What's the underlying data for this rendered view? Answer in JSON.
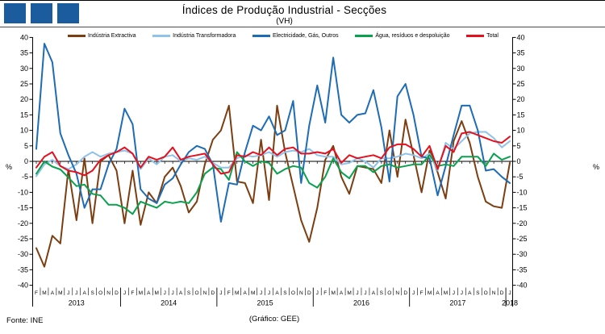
{
  "header": {
    "title": "Índices de Produção Industrial - Secções",
    "subtitle": "(VH)"
  },
  "logo": {
    "squares": 3,
    "color": "#1A5C9E"
  },
  "footer": {
    "source": "Fonte: INE",
    "credit": "(Gráfico: GEE)"
  },
  "chart_data": {
    "type": "line",
    "title": "Índices de Produção Industrial - Secções",
    "subtitle": "(VH)",
    "unit": "%",
    "ylim": [
      -40,
      40
    ],
    "ytick_step": 5,
    "legend_position": "top",
    "grid": false,
    "x_month_letters": [
      "F",
      "M",
      "A",
      "M",
      "J",
      "J",
      "A",
      "S",
      "O",
      "N",
      "D",
      "J",
      "F",
      "M",
      "A",
      "M",
      "J",
      "J",
      "A",
      "S",
      "O",
      "N",
      "D",
      "J",
      "F",
      "M",
      "A",
      "M",
      "J",
      "J",
      "A",
      "S",
      "O",
      "N",
      "D",
      "J",
      "F",
      "M",
      "A",
      "M",
      "J",
      "J",
      "A",
      "S",
      "O",
      "N",
      "D",
      "J",
      "F",
      "M",
      "A",
      "M",
      "J",
      "J",
      "A",
      "S",
      "O",
      "N",
      "D",
      "J"
    ],
    "years": [
      {
        "label": "2013",
        "start": 0,
        "count": 11
      },
      {
        "label": "2014",
        "start": 11,
        "count": 12
      },
      {
        "label": "2015",
        "start": 23,
        "count": 12
      },
      {
        "label": "2016",
        "start": 35,
        "count": 12
      },
      {
        "label": "2017",
        "start": 47,
        "count": 12
      },
      {
        "label": "2018",
        "start": 59,
        "count": 1
      }
    ],
    "series": [
      {
        "name": "Indústria Extractiva",
        "color": "#7C3E11",
        "values": [
          -28,
          -34,
          -24,
          -26.5,
          -2.5,
          -19,
          1,
          -20,
          0,
          2,
          -3,
          -20,
          -3,
          -20.5,
          -10,
          -13.5,
          -5,
          -2,
          -8,
          -16.5,
          -13,
          -1,
          7,
          10,
          18,
          -6.5,
          -7,
          -13.5,
          7,
          -12.5,
          18,
          3,
          -8,
          -19,
          -26,
          -15,
          0.5,
          5,
          -5,
          -10.5,
          -1.5,
          -2,
          -2.5,
          -7,
          10,
          -5,
          13.5,
          2,
          -10,
          3.5,
          -3.5,
          -12,
          6.5,
          13,
          6,
          -5,
          -13,
          -14.5,
          -15,
          -0.5
        ]
      },
      {
        "name": "Indústria Transformadora",
        "color": "#8FC3E9",
        "values": [
          -4.8,
          -1,
          0.5,
          -1.5,
          -2.5,
          -1,
          1.5,
          3,
          1.5,
          2.5,
          3,
          3.5,
          2.5,
          -2.5,
          1,
          -1,
          1.5,
          2,
          0,
          1,
          0.5,
          1.5,
          -0.5,
          -2,
          -2,
          1,
          2,
          1.5,
          2,
          3,
          1.5,
          3,
          3.5,
          3,
          4,
          2,
          1.5,
          1.5,
          -1,
          -0.5,
          1,
          0,
          -2,
          1,
          1,
          1.5,
          2.5,
          2,
          1,
          2.5,
          -3,
          6,
          4,
          6.5,
          9,
          9.5,
          9.5,
          7.5,
          4.5,
          6.5
        ]
      },
      {
        "name": "Electricidade, Gás, Outros",
        "color": "#1D6CB5",
        "values": [
          4,
          38,
          32,
          9,
          2,
          -4,
          -15,
          -9,
          -9,
          -1,
          4,
          17,
          12,
          -9,
          -12,
          -13.5,
          -7.5,
          -5.5,
          -1,
          3,
          5,
          4,
          -1,
          -19.5,
          -7,
          -7.5,
          3,
          11.5,
          10,
          14.5,
          8.5,
          10,
          19.5,
          -7,
          11.5,
          24.5,
          12.5,
          33.5,
          15,
          12.5,
          15,
          15.5,
          23,
          11,
          -6.5,
          21,
          25,
          15,
          1.5,
          1,
          -11,
          -1.5,
          8.5,
          18,
          18,
          10,
          -3,
          -2.5,
          -5,
          -7
        ]
      },
      {
        "name": "Água, resíduos e despoluição",
        "color": "#0AA14E",
        "values": [
          -4,
          0,
          -1.7,
          -2.6,
          -5.2,
          -8,
          -7.5,
          -10.5,
          -11,
          -14,
          -14,
          -15,
          -17,
          -13,
          -14,
          -15,
          -13,
          -13.5,
          -13,
          -13.5,
          -10,
          -4,
          -2,
          -2.5,
          -6,
          3,
          0,
          -1.5,
          0,
          -0.5,
          -4,
          -2.5,
          -1.5,
          -2,
          -7,
          -8.5,
          -5,
          1,
          -3.5,
          -5.5,
          -1.5,
          -1.5,
          -3.5,
          -1.5,
          -1,
          -2,
          -1.5,
          -1,
          -1,
          2,
          -1.5,
          -1,
          -1.5,
          1.5,
          1.5,
          1.5,
          -1.5,
          2.5,
          0.5,
          1.5
        ]
      },
      {
        "name": "Total",
        "color": "#E4101E",
        "values": [
          -2,
          1.5,
          3,
          -1.5,
          -3,
          -3.5,
          -4.5,
          -3,
          0.5,
          2,
          3,
          4.5,
          2.5,
          -2,
          1.5,
          0.5,
          1.5,
          4.5,
          0.5,
          1.5,
          2,
          2.5,
          -1,
          -4,
          -3.5,
          2,
          1.5,
          3,
          2,
          4.5,
          2,
          4,
          4.5,
          2.5,
          2.5,
          3,
          2.5,
          4,
          -0.5,
          2,
          1,
          1.5,
          2,
          1,
          4.5,
          5.5,
          5.5,
          4,
          1.5,
          5,
          -2.5,
          5,
          3,
          9,
          9.5,
          8.5,
          7.5,
          6.5,
          6,
          8
        ]
      }
    ]
  }
}
